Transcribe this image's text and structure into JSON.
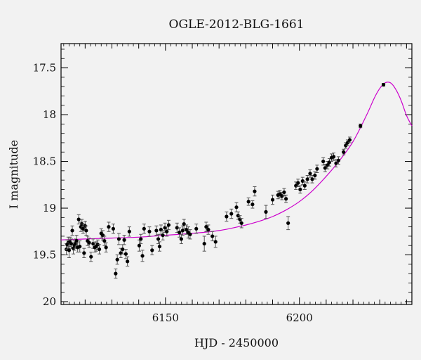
{
  "chart_data": {
    "type": "scatter",
    "title": "OGLE-2012-BLG-1661",
    "xlabel": "HJD - 2450000",
    "ylabel": "I magnitude",
    "xlim": [
      6111,
      6242
    ],
    "ylim": [
      20.03,
      17.24
    ],
    "y_inverted": true,
    "x_ticks": [
      6150,
      6200
    ],
    "y_ticks": [
      17.5,
      18,
      18.5,
      19,
      19.5,
      20
    ],
    "y_tick_labels": [
      "17.5",
      "18",
      "18.5",
      "19",
      "19.5",
      "20"
    ],
    "x_tick_labels": [
      "6150",
      "6200"
    ],
    "grid": false,
    "colors": {
      "points": "#000000",
      "errorbars": "#555555",
      "model": "#cc00cc"
    },
    "model_curve": {
      "x": [
        6111,
        6120,
        6130,
        6140,
        6150,
        6160,
        6170,
        6180,
        6185,
        6190,
        6195,
        6200,
        6205,
        6210,
        6215,
        6220,
        6225,
        6228,
        6230,
        6232,
        6234,
        6236,
        6238,
        6240,
        6242
      ],
      "y": [
        19.34,
        19.33,
        19.32,
        19.31,
        19.29,
        19.27,
        19.24,
        19.18,
        19.14,
        19.09,
        19.02,
        18.93,
        18.81,
        18.66,
        18.49,
        18.29,
        18.01,
        17.82,
        17.72,
        17.66,
        17.66,
        17.73,
        17.85,
        18.01,
        18.12
      ]
    },
    "series": [
      {
        "x": [
          6113.0,
          6113.3,
          6113.7,
          6114.0,
          6114.4,
          6114.8,
          6115.2,
          6115.6,
          6116.0,
          6116.4,
          6116.8,
          6117.2,
          6117.6,
          6118.0,
          6118.4,
          6118.8,
          6119.2,
          6119.6,
          6120.0,
          6120.4,
          6120.9,
          6121.5,
          6122.2,
          6123.0,
          6123.6,
          6124.1,
          6124.7,
          6125.3,
          6126.0,
          6126.6,
          6127.2,
          6127.8,
          6128.8,
          6130.5,
          6131.4,
          6132.0,
          6132.6,
          6133.3,
          6134.0,
          6134.6,
          6135.2,
          6135.8,
          6136.5,
          6140.2,
          6140.8,
          6141.4,
          6142.0,
          6144.0,
          6145.0,
          6146.6,
          6147.3,
          6147.8,
          6148.3,
          6149.0,
          6149.8,
          6150.5,
          6151.2,
          6154.3,
          6155.2,
          6155.9,
          6156.4,
          6156.9,
          6157.8,
          6158.5,
          6159.2,
          6161.5,
          6164.5,
          6165.2,
          6166.0,
          6167.5,
          6168.7,
          6172.8,
          6174.6,
          6176.5,
          6177.1,
          6177.8,
          6178.4,
          6181.0,
          6182.5,
          6183.3,
          6187.5,
          6190.0,
          6192.0,
          6192.7,
          6193.5,
          6194.3,
          6195.0,
          6195.8,
          6198.7,
          6199.5,
          6200.3,
          6201.2,
          6202.0,
          6203.0,
          6204.0,
          6204.8,
          6205.8,
          6206.6,
          6208.9,
          6209.6,
          6210.5,
          6211.2,
          6212.0,
          6212.8,
          6213.7,
          6214.6,
          6216.5,
          6217.3,
          6218.0,
          6218.8,
          6222.8,
          6231.4
        ],
        "y": [
          19.44,
          19.39,
          19.37,
          19.45,
          19.36,
          19.38,
          19.24,
          19.43,
          19.4,
          19.38,
          19.35,
          19.42,
          19.12,
          19.41,
          19.2,
          19.17,
          19.22,
          19.48,
          19.19,
          19.24,
          19.35,
          19.37,
          19.52,
          19.38,
          19.42,
          19.41,
          19.39,
          19.44,
          19.27,
          19.29,
          19.35,
          19.42,
          19.2,
          19.22,
          19.7,
          19.55,
          19.33,
          19.48,
          19.44,
          19.34,
          19.49,
          19.57,
          19.25,
          19.4,
          19.33,
          19.51,
          19.22,
          19.25,
          19.45,
          19.24,
          19.33,
          19.41,
          19.23,
          19.29,
          19.21,
          19.25,
          19.18,
          19.21,
          19.26,
          19.33,
          19.24,
          19.17,
          19.23,
          19.26,
          19.28,
          19.22,
          19.38,
          19.2,
          19.23,
          19.3,
          19.36,
          19.09,
          19.06,
          18.99,
          19.08,
          19.12,
          19.16,
          18.93,
          18.96,
          18.82,
          19.04,
          18.91,
          18.86,
          18.85,
          18.87,
          18.83,
          18.9,
          19.16,
          18.76,
          18.73,
          18.8,
          18.71,
          18.76,
          18.69,
          18.63,
          18.69,
          18.65,
          18.58,
          18.5,
          18.57,
          18.54,
          18.51,
          18.46,
          18.45,
          18.52,
          18.49,
          18.4,
          18.33,
          18.3,
          18.27,
          18.12,
          17.68
        ],
        "err": [
          0.06,
          0.05,
          0.06,
          0.08,
          0.05,
          0.05,
          0.05,
          0.06,
          0.05,
          0.05,
          0.06,
          0.05,
          0.05,
          0.06,
          0.05,
          0.05,
          0.05,
          0.05,
          0.05,
          0.05,
          0.05,
          0.05,
          0.05,
          0.05,
          0.05,
          0.05,
          0.05,
          0.05,
          0.05,
          0.05,
          0.05,
          0.05,
          0.05,
          0.05,
          0.05,
          0.05,
          0.06,
          0.05,
          0.05,
          0.05,
          0.05,
          0.05,
          0.05,
          0.06,
          0.05,
          0.06,
          0.05,
          0.05,
          0.05,
          0.05,
          0.05,
          0.05,
          0.05,
          0.05,
          0.05,
          0.05,
          0.05,
          0.05,
          0.05,
          0.05,
          0.05,
          0.05,
          0.05,
          0.06,
          0.05,
          0.05,
          0.08,
          0.05,
          0.05,
          0.05,
          0.06,
          0.05,
          0.05,
          0.05,
          0.04,
          0.04,
          0.05,
          0.04,
          0.04,
          0.05,
          0.07,
          0.05,
          0.04,
          0.04,
          0.04,
          0.04,
          0.04,
          0.07,
          0.04,
          0.04,
          0.04,
          0.04,
          0.04,
          0.04,
          0.04,
          0.04,
          0.04,
          0.04,
          0.04,
          0.04,
          0.04,
          0.04,
          0.04,
          0.04,
          0.04,
          0.04,
          0.03,
          0.03,
          0.03,
          0.03,
          0.02,
          0.015
        ]
      }
    ]
  }
}
